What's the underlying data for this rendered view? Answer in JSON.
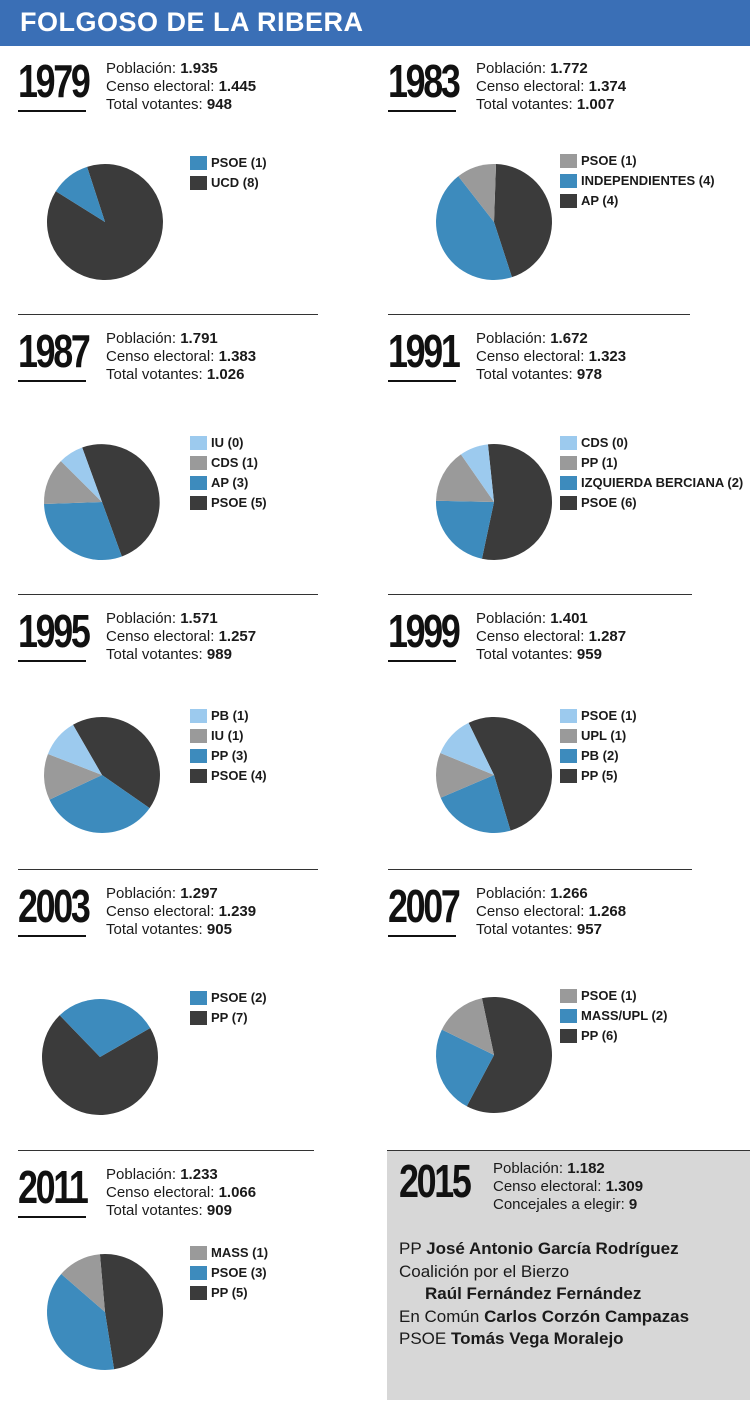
{
  "title": "FOLGOSO DE LA RIBERA",
  "labels": {
    "poblacion": "Población:",
    "censo": "Censo electoral:",
    "votantes": "Total votantes:",
    "concejales": "Concejales a elegir:"
  },
  "colors": {
    "dark": "#3b3b3b",
    "blue": "#3d8bbd",
    "gray": "#9a9a9a",
    "lightblue": "#9ccaee"
  },
  "chart_data": [
    {
      "type": "pie",
      "year": "1979",
      "poblacion": "1.935",
      "censo": "1.445",
      "votantes": "948",
      "slices": [
        {
          "label": "PSOE (1)",
          "value": 1,
          "color": "#3d8bbd"
        },
        {
          "label": "UCD (8)",
          "value": 8,
          "color": "#3b3b3b"
        }
      ]
    },
    {
      "type": "pie",
      "year": "1983",
      "poblacion": "1.772",
      "censo": "1.374",
      "votantes": "1.007",
      "slices": [
        {
          "label": "PSOE (1)",
          "value": 1,
          "color": "#9a9a9a"
        },
        {
          "label": "INDEPENDIENTES (4)",
          "value": 4,
          "color": "#3d8bbd"
        },
        {
          "label": "AP (4)",
          "value": 4,
          "color": "#3b3b3b"
        }
      ]
    },
    {
      "type": "pie",
      "year": "1987",
      "poblacion": "1.791",
      "censo": "1.383",
      "votantes": "1.026",
      "slices": [
        {
          "label": "IU (0)",
          "value": 0.7,
          "color": "#9ccaee"
        },
        {
          "label": "CDS (1)",
          "value": 1.3,
          "color": "#9a9a9a"
        },
        {
          "label": "AP (3)",
          "value": 3,
          "color": "#3d8bbd"
        },
        {
          "label": "PSOE (5)",
          "value": 5,
          "color": "#3b3b3b"
        }
      ]
    },
    {
      "type": "pie",
      "year": "1991",
      "poblacion": "1.672",
      "censo": "1.323",
      "votantes": "978",
      "slices": [
        {
          "label": "CDS (0)",
          "value": 0.8,
          "color": "#9ccaee"
        },
        {
          "label": "PP (1)",
          "value": 1.5,
          "color": "#9a9a9a"
        },
        {
          "label": "IZQUIERDA BERCIANA (2)",
          "value": 2.2,
          "color": "#3d8bbd"
        },
        {
          "label": "PSOE (6)",
          "value": 5.5,
          "color": "#3b3b3b"
        }
      ]
    },
    {
      "type": "pie",
      "year": "1995",
      "poblacion": "1.571",
      "censo": "1.257",
      "votantes": "989",
      "slices": [
        {
          "label": "PB (1)",
          "value": 1,
          "color": "#9ccaee"
        },
        {
          "label": "IU (1)",
          "value": 1.2,
          "color": "#9a9a9a"
        },
        {
          "label": "PP (3)",
          "value": 3.1,
          "color": "#3d8bbd"
        },
        {
          "label": "PSOE (4)",
          "value": 4,
          "color": "#3b3b3b"
        }
      ]
    },
    {
      "type": "pie",
      "year": "1999",
      "poblacion": "1.401",
      "censo": "1.287",
      "votantes": "959",
      "slices": [
        {
          "label": "PSOE (1)",
          "value": 1.1,
          "color": "#9ccaee"
        },
        {
          "label": "UPL (1)",
          "value": 1.2,
          "color": "#9a9a9a"
        },
        {
          "label": "PB (2)",
          "value": 2.2,
          "color": "#3d8bbd"
        },
        {
          "label": "PP (5)",
          "value": 5,
          "color": "#3b3b3b"
        }
      ]
    },
    {
      "type": "pie",
      "year": "2003",
      "poblacion": "1.297",
      "censo": "1.239",
      "votantes": "905",
      "slices": [
        {
          "label": "PSOE (2)",
          "value": 2.6,
          "color": "#3d8bbd"
        },
        {
          "label": "PP (7)",
          "value": 6.4,
          "color": "#3b3b3b"
        }
      ]
    },
    {
      "type": "pie",
      "year": "2007",
      "poblacion": "1.266",
      "censo": "1.268",
      "votantes": "957",
      "slices": [
        {
          "label": "PSOE (1)",
          "value": 1.3,
          "color": "#9a9a9a"
        },
        {
          "label": "MASS/UPL (2)",
          "value": 2.2,
          "color": "#3d8bbd"
        },
        {
          "label": "PP (6)",
          "value": 5.5,
          "color": "#3b3b3b"
        }
      ]
    },
    {
      "type": "pie",
      "year": "2011",
      "poblacion": "1.233",
      "censo": "1.066",
      "votantes": "909",
      "slices": [
        {
          "label": "MASS (1)",
          "value": 1.1,
          "color": "#9a9a9a"
        },
        {
          "label": "PSOE (3)",
          "value": 3.5,
          "color": "#3d8bbd"
        },
        {
          "label": "PP (5)",
          "value": 4.4,
          "color": "#3b3b3b"
        }
      ]
    }
  ],
  "box2015": {
    "year": "2015",
    "poblacion": "1.182",
    "censo": "1.309",
    "concejales": "9",
    "candidates": [
      {
        "party": "PP",
        "name": "José Antonio García Rodríguez"
      },
      {
        "party": "Coalición por el Bierzo",
        "name": "Raúl Fernández Fernández"
      },
      {
        "party": "En Común",
        "name": "Carlos Corzón Campazas"
      },
      {
        "party": "PSOE",
        "name": "Tomás Vega Moralejo"
      }
    ]
  }
}
